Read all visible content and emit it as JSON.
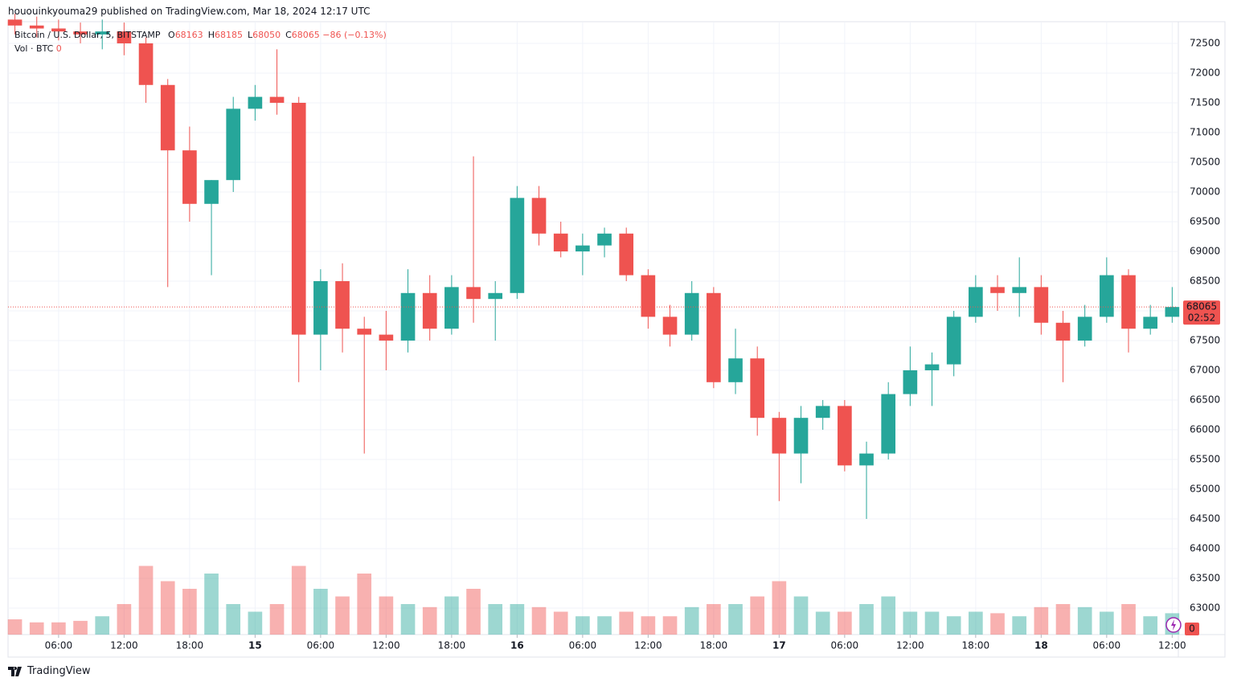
{
  "chart_data": {
    "type": "candlestick",
    "header": "hououinkyouma29 published on TradingView.com, Mar 18, 2024 12:17 UTC",
    "symbol": "Bitcoin / U.S. Dollar, 5, BITSTAMP",
    "ohlc_labels": [
      "O",
      "H",
      "L",
      "C"
    ],
    "ohlc_values": [
      68163,
      68185,
      68050,
      68065
    ],
    "change_label": "−86 (−0.13%)",
    "volume_title": "Vol · BTC",
    "volume_last": 0,
    "last_price": 68065,
    "countdown": "02:52",
    "brand": "TradingView",
    "up_color": "#26a69a",
    "down_color": "#ef5350",
    "grid": true,
    "ylim": [
      62554,
      72851
    ],
    "yticks": [
      63000,
      63500,
      64000,
      64500,
      65000,
      65500,
      66000,
      66500,
      67000,
      67500,
      68000,
      68500,
      69000,
      69500,
      70000,
      70500,
      71000,
      71500,
      72000,
      72500
    ],
    "xlim": [
      1.37,
      108.49
    ],
    "xticks": [
      {
        "value": 6,
        "label": "06:00"
      },
      {
        "value": 12,
        "label": "12:00"
      },
      {
        "value": 18,
        "label": "18:00"
      },
      {
        "value": 24,
        "label": "15"
      },
      {
        "value": 30,
        "label": "06:00"
      },
      {
        "value": 36,
        "label": "12:00"
      },
      {
        "value": 42,
        "label": "18:00"
      },
      {
        "value": 48,
        "label": "16"
      },
      {
        "value": 54,
        "label": "06:00"
      },
      {
        "value": 60,
        "label": "12:00"
      },
      {
        "value": 66,
        "label": "18:00"
      },
      {
        "value": 72,
        "label": "17"
      },
      {
        "value": 78,
        "label": "06:00"
      },
      {
        "value": 84,
        "label": "12:00"
      },
      {
        "value": 90,
        "label": "18:00"
      },
      {
        "value": 96,
        "label": "18"
      },
      {
        "value": 102,
        "label": "06:00"
      },
      {
        "value": 108,
        "label": "12:00"
      }
    ],
    "vlim": [
      0,
      100
    ],
    "series": {
      "x": [
        2,
        4,
        6,
        8,
        10,
        12,
        14,
        16,
        18,
        20,
        22,
        24,
        26,
        28,
        30,
        32,
        34,
        36,
        38,
        40,
        42,
        44,
        46,
        48,
        50,
        52,
        54,
        56,
        58,
        60,
        62,
        64,
        66,
        68,
        70,
        72,
        74,
        76,
        78,
        80,
        82,
        84,
        86,
        88,
        90,
        92,
        94,
        96,
        98,
        100,
        102,
        104,
        106,
        108
      ],
      "open": [
        72900,
        72800,
        72750,
        72700,
        72650,
        72700,
        72500,
        71800,
        70700,
        69800,
        70200,
        71400,
        71600,
        71500,
        67600,
        68500,
        67700,
        67600,
        67500,
        68300,
        67700,
        68400,
        68200,
        68300,
        69900,
        69300,
        69000,
        69100,
        69300,
        68600,
        67900,
        67600,
        68300,
        66800,
        67200,
        66200,
        65600,
        66200,
        66400,
        65400,
        65600,
        66600,
        67000,
        67100,
        67900,
        68400,
        68300,
        68400,
        67800,
        67500,
        67900,
        68600,
        67700,
        67900
      ],
      "high": [
        73000,
        72950,
        72900,
        72850,
        72900,
        72850,
        72600,
        71900,
        71100,
        70200,
        71600,
        71800,
        72400,
        71600,
        68700,
        68800,
        67900,
        68000,
        68700,
        68600,
        68600,
        70600,
        68500,
        70100,
        70100,
        69500,
        69300,
        69400,
        69400,
        68700,
        68100,
        68500,
        68400,
        67700,
        67400,
        66300,
        66400,
        66500,
        66500,
        65800,
        66800,
        67400,
        67300,
        68000,
        68600,
        68600,
        68900,
        68600,
        68000,
        68100,
        68900,
        68700,
        68100,
        68400
      ],
      "low": [
        72650,
        72600,
        72550,
        72500,
        72400,
        72300,
        71500,
        68400,
        69500,
        68600,
        70000,
        71200,
        71300,
        66800,
        67000,
        67300,
        65600,
        67000,
        67300,
        67500,
        67600,
        67800,
        67500,
        68200,
        69100,
        68900,
        68600,
        68900,
        68500,
        67700,
        67400,
        67500,
        66700,
        66600,
        65900,
        64800,
        65100,
        66000,
        65300,
        64500,
        65500,
        66400,
        66400,
        66900,
        67800,
        68000,
        67900,
        67600,
        66800,
        67400,
        67800,
        67300,
        67600,
        67800
      ],
      "close": [
        72800,
        72750,
        72700,
        72650,
        72700,
        72500,
        71800,
        70700,
        69800,
        70200,
        71400,
        71600,
        71500,
        67600,
        68500,
        67700,
        67600,
        67500,
        68300,
        67700,
        68400,
        68200,
        68300,
        69900,
        69300,
        69000,
        69100,
        69300,
        68600,
        67900,
        67600,
        68300,
        66800,
        67200,
        66200,
        65600,
        66200,
        66400,
        65400,
        65600,
        66600,
        67000,
        67100,
        67900,
        68400,
        68300,
        68400,
        67800,
        67500,
        67900,
        68600,
        67700,
        67900,
        68065
      ],
      "volume": [
        10,
        8,
        8,
        9,
        12,
        20,
        45,
        35,
        30,
        40,
        20,
        15,
        20,
        45,
        30,
        25,
        40,
        25,
        20,
        18,
        25,
        30,
        20,
        20,
        18,
        15,
        12,
        12,
        15,
        12,
        12,
        18,
        20,
        20,
        25,
        35,
        25,
        15,
        15,
        20,
        25,
        15,
        15,
        12,
        15,
        14,
        12,
        18,
        20,
        18,
        15,
        20,
        12,
        14
      ]
    }
  }
}
